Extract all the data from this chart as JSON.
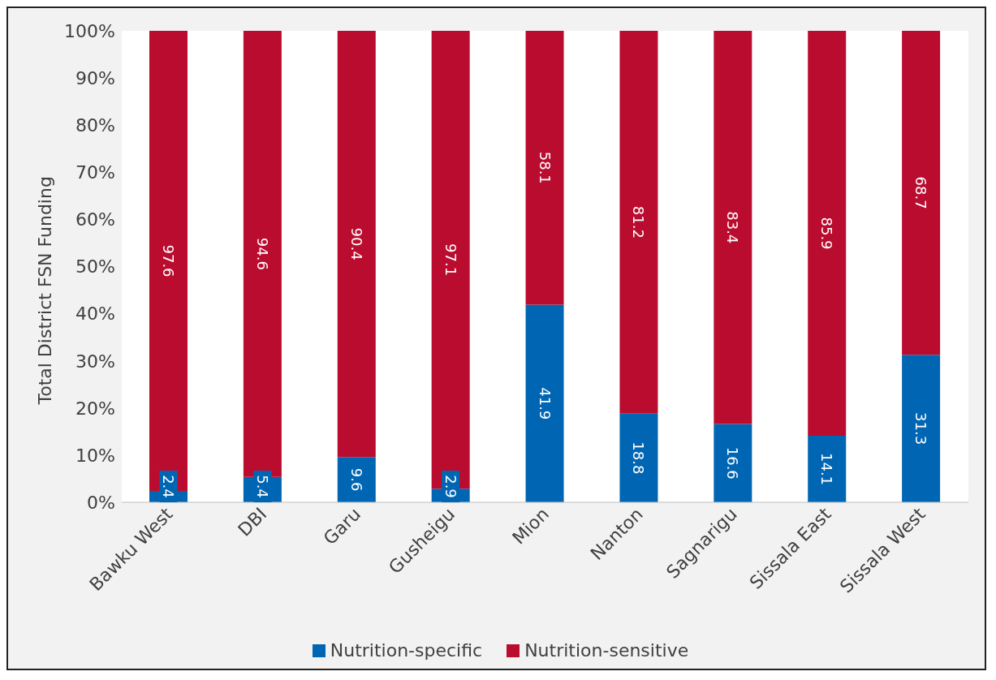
{
  "chart_data": {
    "type": "bar",
    "stacked": true,
    "ylabel": "Total District FSN Funding",
    "categories": [
      "Bawku West",
      "DBI",
      "Garu",
      "Gusheigu",
      "Mion",
      "Nanton",
      "Sagnarigu",
      "Sissala East",
      "Sissala West"
    ],
    "series": [
      {
        "name": "Nutrition-specific",
        "color": "#0066b3",
        "values": [
          2.4,
          5.4,
          9.6,
          2.9,
          41.9,
          18.8,
          16.6,
          14.1,
          31.3
        ]
      },
      {
        "name": "Nutrition-sensitive",
        "color": "#ba0c2f",
        "values": [
          97.6,
          94.6,
          90.4,
          97.1,
          58.1,
          81.2,
          83.4,
          85.9,
          68.7
        ]
      }
    ],
    "ylim": [
      0,
      100
    ],
    "yticks": [
      {
        "value": 0,
        "label": "0%"
      },
      {
        "value": 10,
        "label": "10%"
      },
      {
        "value": 20,
        "label": "20%"
      },
      {
        "value": 30,
        "label": "30%"
      },
      {
        "value": 40,
        "label": "40%"
      },
      {
        "value": 50,
        "label": "50%"
      },
      {
        "value": 60,
        "label": "60%"
      },
      {
        "value": 70,
        "label": "70%"
      },
      {
        "value": 80,
        "label": "80%"
      },
      {
        "value": 90,
        "label": "90%"
      },
      {
        "value": 100,
        "label": "100%"
      }
    ],
    "data_labels": true,
    "legend": "bottom",
    "grid": false
  }
}
